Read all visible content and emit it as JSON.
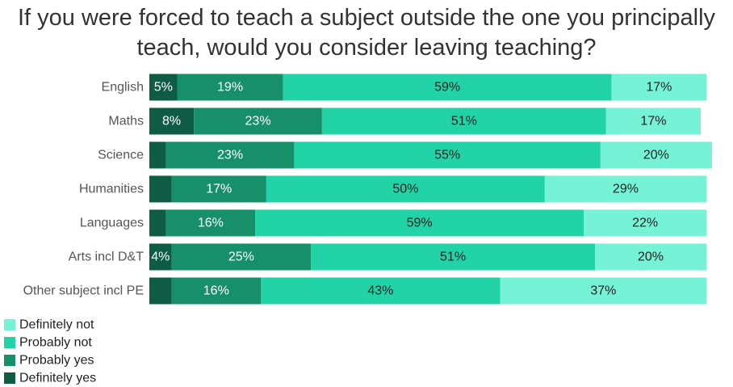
{
  "chart_data": {
    "type": "stacked-barh",
    "title": "If you were forced to teach a subject outside the one you principally teach, would you consider leaving teaching?",
    "categories": [
      "English",
      "Maths",
      "Science",
      "Humanities",
      "Languages",
      "Arts incl D&T",
      "Other subject incl PE"
    ],
    "xlim": [
      0,
      100
    ],
    "series": [
      {
        "name": "Definitely yes",
        "color": "#0d5c43",
        "values": [
          5,
          8,
          3,
          4,
          3,
          4,
          4
        ],
        "value_labels": [
          "5%",
          "8%",
          null,
          null,
          null,
          "4%",
          null
        ]
      },
      {
        "name": "Probably yes",
        "color": "#17906a",
        "values": [
          19,
          23,
          23,
          17,
          16,
          25,
          16
        ],
        "value_labels": [
          "19%",
          "23%",
          "23%",
          "17%",
          "16%",
          "25%",
          "16%"
        ]
      },
      {
        "name": "Probably not",
        "color": "#21d3a6",
        "values": [
          59,
          51,
          55,
          50,
          59,
          51,
          43
        ],
        "value_labels": [
          "59%",
          "51%",
          "55%",
          "50%",
          "59%",
          "51%",
          "43%"
        ]
      },
      {
        "name": "Definitely not",
        "color": "#76f2d7",
        "values": [
          17,
          17,
          20,
          29,
          22,
          20,
          37
        ],
        "value_labels": [
          "17%",
          "17%",
          "20%",
          "29%",
          "22%",
          "20%",
          "37%"
        ]
      }
    ]
  }
}
